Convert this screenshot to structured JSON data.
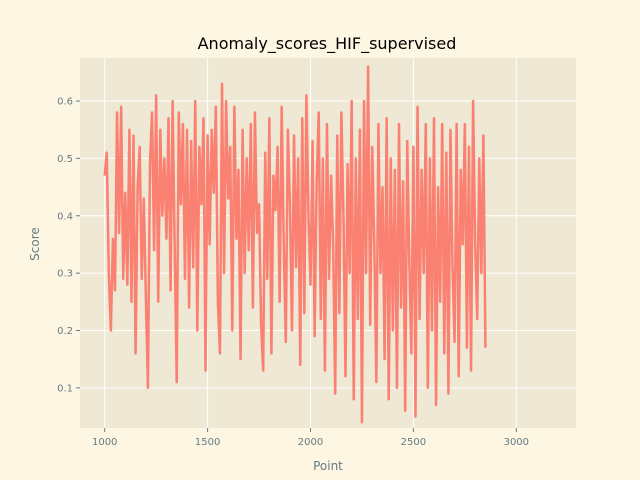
{
  "chart_data": {
    "type": "line",
    "title": "Anomaly_scores_HIF_supervised",
    "xlabel": "Point",
    "ylabel": "Score",
    "xlim": [
      880,
      3290
    ],
    "ylim": [
      0.03,
      0.675
    ],
    "x_ticks": [
      1000,
      1500,
      2000,
      2500,
      3000
    ],
    "y_ticks": [
      0.1,
      0.2,
      0.3,
      0.4,
      0.5,
      0.6
    ],
    "grid": true,
    "legend": "none",
    "colors": {
      "background": "#fdf6e3",
      "plot_area": "#eee8d5",
      "grid": "#ffffff",
      "line": "#fa8072"
    },
    "series": [
      {
        "x_start": 1000,
        "x_step": 10,
        "values": [
          0.47,
          0.51,
          0.3,
          0.2,
          0.36,
          0.27,
          0.58,
          0.37,
          0.59,
          0.29,
          0.44,
          0.28,
          0.55,
          0.25,
          0.54,
          0.16,
          0.45,
          0.52,
          0.29,
          0.43,
          0.26,
          0.1,
          0.49,
          0.58,
          0.34,
          0.61,
          0.25,
          0.55,
          0.4,
          0.5,
          0.36,
          0.57,
          0.27,
          0.6,
          0.35,
          0.11,
          0.58,
          0.42,
          0.56,
          0.29,
          0.55,
          0.24,
          0.53,
          0.31,
          0.6,
          0.2,
          0.52,
          0.42,
          0.57,
          0.13,
          0.54,
          0.35,
          0.55,
          0.44,
          0.59,
          0.25,
          0.16,
          0.63,
          0.3,
          0.6,
          0.43,
          0.52,
          0.2,
          0.59,
          0.36,
          0.48,
          0.15,
          0.55,
          0.3,
          0.5,
          0.34,
          0.56,
          0.24,
          0.58,
          0.37,
          0.42,
          0.21,
          0.13,
          0.51,
          0.29,
          0.57,
          0.16,
          0.47,
          0.41,
          0.52,
          0.25,
          0.59,
          0.35,
          0.18,
          0.55,
          0.42,
          0.2,
          0.54,
          0.31,
          0.5,
          0.14,
          0.57,
          0.23,
          0.61,
          0.4,
          0.28,
          0.53,
          0.19,
          0.46,
          0.58,
          0.22,
          0.5,
          0.13,
          0.56,
          0.29,
          0.47,
          0.35,
          0.09,
          0.54,
          0.23,
          0.58,
          0.4,
          0.12,
          0.49,
          0.3,
          0.6,
          0.08,
          0.5,
          0.22,
          0.55,
          0.04,
          0.6,
          0.3,
          0.66,
          0.21,
          0.52,
          0.35,
          0.11,
          0.56,
          0.3,
          0.45,
          0.15,
          0.57,
          0.08,
          0.5,
          0.2,
          0.48,
          0.1,
          0.56,
          0.24,
          0.46,
          0.06,
          0.53,
          0.32,
          0.16,
          0.52,
          0.05,
          0.59,
          0.22,
          0.48,
          0.3,
          0.56,
          0.1,
          0.5,
          0.2,
          0.57,
          0.07,
          0.45,
          0.25,
          0.56,
          0.16,
          0.51,
          0.09,
          0.55,
          0.31,
          0.18,
          0.56,
          0.12,
          0.48,
          0.35,
          0.56,
          0.17,
          0.52,
          0.13,
          0.6,
          0.35,
          0.22,
          0.5,
          0.3,
          0.54,
          0.17
        ],
        "values_note": ""
      }
    ]
  }
}
